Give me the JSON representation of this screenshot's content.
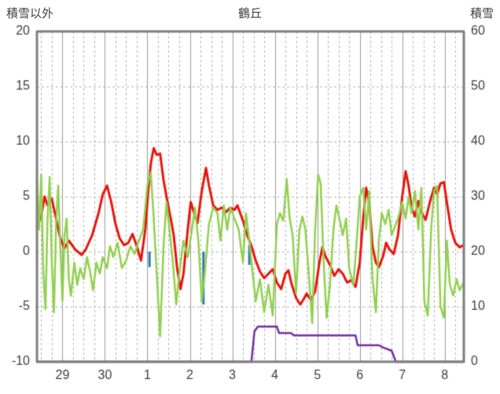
{
  "header": {
    "left_axis_title": "積雪以外",
    "title": "鶴丘",
    "right_axis_title": "積雪"
  },
  "chart_data": {
    "type": "line",
    "title": "鶴丘",
    "left_axis": {
      "label": "積雪以外",
      "min": -10,
      "max": 20,
      "ticks": [
        20,
        15,
        10,
        5,
        0,
        -5,
        -10
      ]
    },
    "right_axis": {
      "label": "積雪",
      "min": 0,
      "max": 60,
      "ticks": [
        60,
        50,
        40,
        30,
        20,
        10,
        0
      ]
    },
    "x_axis": {
      "tick_labels": [
        "29",
        "30",
        "1",
        "2",
        "3",
        "4",
        "5",
        "6",
        "7",
        "8"
      ],
      "tick_positions": [
        0,
        1,
        2,
        3,
        4,
        5,
        6,
        7,
        8,
        9
      ],
      "min": -0.6,
      "max": 9.45,
      "minor_grid_step": 0.25
    },
    "grid_color": "#b3b3b3",
    "day_line_color": "#9a9a9a",
    "frame_color": "#7f7f7f",
    "text_color": "#3f3f3f",
    "bar_color": "#2e75b6",
    "bars": [
      {
        "x": 2.05,
        "y_top": 0.0,
        "y_bottom": -1.4
      },
      {
        "x": 3.32,
        "y_top": 0.0,
        "y_bottom": -4.8
      },
      {
        "x": 4.4,
        "y_top": 0.6,
        "y_bottom": -1.2
      }
    ],
    "series": [
      {
        "name": "red-line",
        "color": "#e8160c",
        "axis": "left",
        "width": 3,
        "points": [
          [
            -0.6,
            2.3
          ],
          [
            -0.5,
            3.2
          ],
          [
            -0.42,
            5.0
          ],
          [
            -0.35,
            4.2
          ],
          [
            -0.25,
            4.8
          ],
          [
            -0.15,
            3.0
          ],
          [
            -0.05,
            1.2
          ],
          [
            0.05,
            0.3
          ],
          [
            0.15,
            1.0
          ],
          [
            0.3,
            0.2
          ],
          [
            0.45,
            -0.3
          ],
          [
            0.55,
            0.2
          ],
          [
            0.7,
            1.5
          ],
          [
            0.85,
            3.5
          ],
          [
            0.95,
            5.2
          ],
          [
            1.05,
            6.0
          ],
          [
            1.15,
            4.5
          ],
          [
            1.25,
            2.5
          ],
          [
            1.35,
            1.2
          ],
          [
            1.45,
            0.6
          ],
          [
            1.55,
            0.8
          ],
          [
            1.65,
            1.6
          ],
          [
            1.75,
            0.5
          ],
          [
            1.85,
            -0.8
          ],
          [
            1.95,
            2.0
          ],
          [
            2.02,
            5.5
          ],
          [
            2.08,
            8.0
          ],
          [
            2.15,
            9.4
          ],
          [
            2.22,
            8.8
          ],
          [
            2.3,
            8.9
          ],
          [
            2.38,
            6.5
          ],
          [
            2.45,
            5.0
          ],
          [
            2.55,
            3.0
          ],
          [
            2.62,
            1.5
          ],
          [
            2.7,
            -1.5
          ],
          [
            2.78,
            -3.4
          ],
          [
            2.85,
            -2.0
          ],
          [
            2.95,
            2.0
          ],
          [
            3.02,
            4.5
          ],
          [
            3.1,
            3.5
          ],
          [
            3.18,
            2.6
          ],
          [
            3.28,
            5.5
          ],
          [
            3.38,
            7.6
          ],
          [
            3.45,
            6.0
          ],
          [
            3.55,
            4.2
          ],
          [
            3.65,
            3.8
          ],
          [
            3.75,
            4.0
          ],
          [
            3.85,
            3.6
          ],
          [
            3.95,
            4.0
          ],
          [
            4.05,
            3.8
          ],
          [
            4.12,
            4.2
          ],
          [
            4.25,
            2.8
          ],
          [
            4.35,
            1.5
          ],
          [
            4.45,
            0.5
          ],
          [
            4.55,
            -0.8
          ],
          [
            4.65,
            -1.8
          ],
          [
            4.75,
            -2.4
          ],
          [
            4.85,
            -2.0
          ],
          [
            4.95,
            -1.6
          ],
          [
            5.05,
            -2.8
          ],
          [
            5.15,
            -3.4
          ],
          [
            5.25,
            -2.0
          ],
          [
            5.32,
            -1.7
          ],
          [
            5.4,
            -3.0
          ],
          [
            5.5,
            -4.2
          ],
          [
            5.6,
            -4.8
          ],
          [
            5.68,
            -4.3
          ],
          [
            5.75,
            -3.8
          ],
          [
            5.85,
            -4.4
          ],
          [
            5.95,
            -3.6
          ],
          [
            6.05,
            -1.0
          ],
          [
            6.12,
            0.4
          ],
          [
            6.2,
            -0.5
          ],
          [
            6.3,
            -1.2
          ],
          [
            6.4,
            -2.2
          ],
          [
            6.5,
            -1.6
          ],
          [
            6.6,
            -2.0
          ],
          [
            6.7,
            -2.8
          ],
          [
            6.8,
            -2.6
          ],
          [
            6.9,
            -3.2
          ],
          [
            7.0,
            -1.0
          ],
          [
            7.08,
            3.0
          ],
          [
            7.15,
            5.8
          ],
          [
            7.22,
            4.5
          ],
          [
            7.3,
            0.5
          ],
          [
            7.38,
            -1.0
          ],
          [
            7.45,
            -1.4
          ],
          [
            7.55,
            -0.4
          ],
          [
            7.62,
            0.8
          ],
          [
            7.7,
            0.2
          ],
          [
            7.8,
            -0.2
          ],
          [
            7.9,
            1.5
          ],
          [
            8.0,
            5.0
          ],
          [
            8.08,
            7.3
          ],
          [
            8.15,
            6.0
          ],
          [
            8.22,
            4.0
          ],
          [
            8.3,
            3.2
          ],
          [
            8.38,
            4.6
          ],
          [
            8.45,
            3.6
          ],
          [
            8.55,
            2.9
          ],
          [
            8.65,
            4.5
          ],
          [
            8.75,
            5.8
          ],
          [
            8.82,
            5.2
          ],
          [
            8.9,
            6.2
          ],
          [
            8.98,
            6.3
          ],
          [
            9.05,
            4.5
          ],
          [
            9.15,
            2.0
          ],
          [
            9.25,
            0.8
          ],
          [
            9.35,
            0.4
          ],
          [
            9.45,
            0.6
          ]
        ]
      },
      {
        "name": "green-line",
        "color": "#92d050",
        "axis": "left",
        "width": 2.5,
        "points": [
          [
            -0.6,
            6.5
          ],
          [
            -0.55,
            2.0
          ],
          [
            -0.5,
            7.0
          ],
          [
            -0.45,
            -2.0
          ],
          [
            -0.4,
            -5.2
          ],
          [
            -0.35,
            3.0
          ],
          [
            -0.3,
            6.8
          ],
          [
            -0.25,
            -1.0
          ],
          [
            -0.2,
            -5.5
          ],
          [
            -0.15,
            2.5
          ],
          [
            -0.1,
            6.0
          ],
          [
            -0.05,
            0.5
          ],
          [
            0.0,
            -4.5
          ],
          [
            0.05,
            1.5
          ],
          [
            0.1,
            3.0
          ],
          [
            0.15,
            -2.5
          ],
          [
            0.2,
            -4.0
          ],
          [
            0.28,
            -1.0
          ],
          [
            0.35,
            -3.0
          ],
          [
            0.42,
            -1.5
          ],
          [
            0.5,
            -2.5
          ],
          [
            0.58,
            -0.5
          ],
          [
            0.65,
            -1.8
          ],
          [
            0.72,
            -3.5
          ],
          [
            0.8,
            -1.0
          ],
          [
            0.88,
            -2.0
          ],
          [
            0.95,
            -0.5
          ],
          [
            1.05,
            -1.5
          ],
          [
            1.12,
            0.5
          ],
          [
            1.2,
            -0.5
          ],
          [
            1.3,
            0.8
          ],
          [
            1.4,
            -1.5
          ],
          [
            1.5,
            -0.8
          ],
          [
            1.6,
            0.5
          ],
          [
            1.7,
            -0.2
          ],
          [
            1.8,
            1.0
          ],
          [
            1.9,
            2.0
          ],
          [
            2.0,
            6.0
          ],
          [
            2.08,
            7.2
          ],
          [
            2.15,
            3.0
          ],
          [
            2.22,
            -2.0
          ],
          [
            2.3,
            -7.7
          ],
          [
            2.38,
            0.5
          ],
          [
            2.45,
            4.5
          ],
          [
            2.52,
            2.0
          ],
          [
            2.6,
            -1.0
          ],
          [
            2.68,
            -4.8
          ],
          [
            2.75,
            -2.0
          ],
          [
            2.85,
            1.0
          ],
          [
            2.95,
            -0.5
          ],
          [
            3.05,
            2.0
          ],
          [
            3.12,
            4.0
          ],
          [
            3.2,
            1.0
          ],
          [
            3.28,
            -4.5
          ],
          [
            3.35,
            -2.0
          ],
          [
            3.45,
            2.5
          ],
          [
            3.55,
            4.0
          ],
          [
            3.65,
            3.5
          ],
          [
            3.72,
            1.0
          ],
          [
            3.8,
            4.2
          ],
          [
            3.88,
            2.0
          ],
          [
            3.95,
            4.0
          ],
          [
            4.05,
            3.0
          ],
          [
            4.15,
            2.0
          ],
          [
            4.25,
            -1.0
          ],
          [
            4.32,
            3.5
          ],
          [
            4.4,
            1.0
          ],
          [
            4.48,
            -2.0
          ],
          [
            4.55,
            -4.5
          ],
          [
            4.65,
            -2.5
          ],
          [
            4.75,
            -5.5
          ],
          [
            4.85,
            -3.0
          ],
          [
            4.95,
            -5.8
          ],
          [
            5.05,
            2.5
          ],
          [
            5.12,
            3.5
          ],
          [
            5.2,
            2.8
          ],
          [
            5.28,
            6.6
          ],
          [
            5.35,
            3.0
          ],
          [
            5.42,
            1.5
          ],
          [
            5.5,
            -3.8
          ],
          [
            5.58,
            2.0
          ],
          [
            5.65,
            3.2
          ],
          [
            5.72,
            2.0
          ],
          [
            5.8,
            -2.0
          ],
          [
            5.88,
            -6.5
          ],
          [
            5.95,
            2.0
          ],
          [
            6.02,
            7.0
          ],
          [
            6.08,
            6.2
          ],
          [
            6.15,
            -1.0
          ],
          [
            6.22,
            -6.0
          ],
          [
            6.3,
            -3.0
          ],
          [
            6.38,
            2.0
          ],
          [
            6.45,
            4.2
          ],
          [
            6.52,
            3.0
          ],
          [
            6.6,
            1.5
          ],
          [
            6.68,
            3.0
          ],
          [
            6.75,
            -1.5
          ],
          [
            6.85,
            -3.0
          ],
          [
            6.92,
            0.5
          ],
          [
            7.0,
            5.0
          ],
          [
            7.08,
            5.8
          ],
          [
            7.15,
            2.0
          ],
          [
            7.22,
            5.5
          ],
          [
            7.3,
            -2.5
          ],
          [
            7.38,
            -5.5
          ],
          [
            7.45,
            1.0
          ],
          [
            7.52,
            3.5
          ],
          [
            7.6,
            2.5
          ],
          [
            7.68,
            3.8
          ],
          [
            7.75,
            1.5
          ],
          [
            7.82,
            2.2
          ],
          [
            7.9,
            3.0
          ],
          [
            8.0,
            4.5
          ],
          [
            8.08,
            3.0
          ],
          [
            8.15,
            5.0
          ],
          [
            8.22,
            3.5
          ],
          [
            8.3,
            5.5
          ],
          [
            8.38,
            2.0
          ],
          [
            8.45,
            5.8
          ],
          [
            8.52,
            -4.5
          ],
          [
            8.6,
            -5.8
          ],
          [
            8.68,
            2.0
          ],
          [
            8.75,
            5.5
          ],
          [
            8.82,
            6.0
          ],
          [
            8.9,
            -5.0
          ],
          [
            8.98,
            -6.0
          ],
          [
            9.05,
            1.0
          ],
          [
            9.12,
            -3.0
          ],
          [
            9.2,
            -4.0
          ],
          [
            9.28,
            -2.5
          ],
          [
            9.35,
            -3.5
          ],
          [
            9.45,
            -2.8
          ]
        ]
      },
      {
        "name": "purple-line",
        "color": "#7030a0",
        "axis": "right",
        "width": 2.5,
        "points": [
          [
            -0.6,
            0
          ],
          [
            4.45,
            0
          ],
          [
            4.52,
            5.5
          ],
          [
            4.6,
            6.4
          ],
          [
            5.05,
            6.4
          ],
          [
            5.1,
            5.2
          ],
          [
            5.38,
            5.2
          ],
          [
            5.45,
            4.8
          ],
          [
            6.9,
            4.8
          ],
          [
            6.95,
            3.0
          ],
          [
            7.45,
            3.0
          ],
          [
            7.55,
            2.6
          ],
          [
            7.75,
            2.0
          ],
          [
            7.85,
            0
          ],
          [
            9.45,
            0
          ]
        ]
      }
    ]
  }
}
